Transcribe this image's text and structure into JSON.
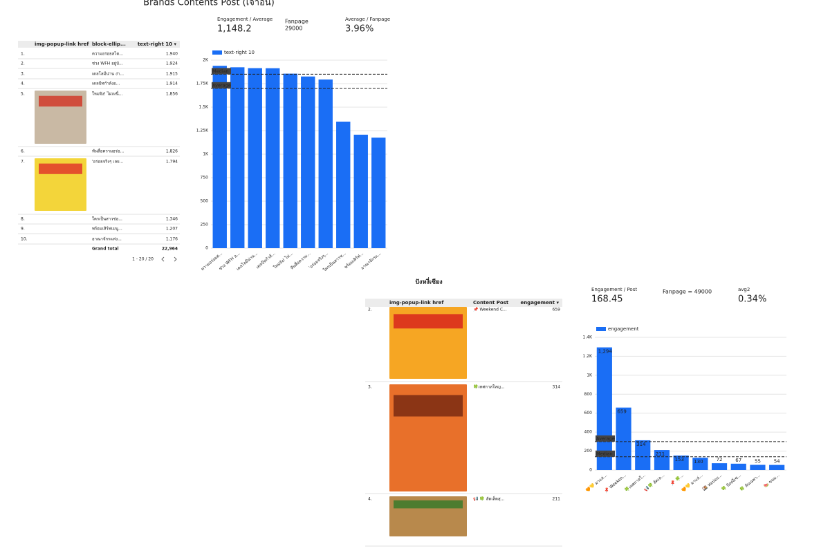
{
  "title": "Brands Contents Post (เจ้าอื่น)",
  "scorecards_top": [
    {
      "label": "Engagement / Average",
      "value": "1,148.2"
    },
    {
      "label": "Fanpage",
      "value": "29000"
    },
    {
      "label": "Average / Fanpage",
      "value": "3.96%"
    }
  ],
  "table_top": {
    "headers": [
      "img-popup-link href",
      "block-ellip...",
      "text-right 10 ▾"
    ],
    "rows": [
      [
        "1.",
        "ความอร่อยสไต...",
        "1,940"
      ],
      [
        "2.",
        "ช่วง WFH อยู่บ้...",
        "1,924"
      ],
      [
        "3.",
        "เดลโลมีน่าน ง่า...",
        "1,915"
      ],
      [
        "4.",
        "เดลบีทกำลังอ...",
        "1,914"
      ],
      [
        "5.",
        "ใหม่จัง! ไม่เหนื่...",
        "1,856"
      ],
      [
        "6.",
        "ทันสื่อความอร่อ...",
        "1,826"
      ],
      [
        "7.",
        "'อร่อยจริงๆ เลย...",
        "1,794"
      ],
      [
        "8.",
        "ใครเป็นสาวช่อ...",
        "1,346"
      ],
      [
        "9.",
        "พร้อมเสิร์ฟเมนู...",
        "1,207"
      ],
      [
        "10.",
        "อาณาจักรแห่ง...",
        "1,176"
      ]
    ],
    "total_label": "Grand total",
    "total": "22,964",
    "pagination": "1 - 20 / 20"
  },
  "chart_data": [
    {
      "type": "bar",
      "categories": [
        "ความอร่อยส...",
        "ช่วง WFH อ...",
        "เดลโลมีน่าน...",
        "เดลบีทกำลั...",
        "ใหม่จัง! ไม่...",
        "ทันสื่อความ...",
        "'อร่อยจริงๆ...",
        "ใครเป็นสาวช...",
        "พร้อมเสิร์ฟ...",
        "อาณาจักรแ..."
      ],
      "series": [
        {
          "name": "text-right 10",
          "color": "#1a6ef5",
          "values": [
            1940,
            1924,
            1915,
            1914,
            1856,
            1826,
            1794,
            1346,
            1207,
            1176
          ]
        }
      ],
      "ylim": [
        0,
        2000
      ],
      "yticks": [
        0,
        250,
        500,
        750,
        {
          "value": 1000,
          "label": "1K"
        },
        {
          "value": 1250,
          "label": "1.25K"
        },
        {
          "value": 1500,
          "label": "1.5K"
        },
        {
          "value": 1750,
          "label": "1.75K"
        },
        {
          "value": 2000,
          "label": "2K"
        }
      ],
      "reference_lines": [
        {
          "label": "Median",
          "value": 1850
        },
        {
          "label": "Average",
          "value": 1700
        }
      ],
      "grid": true
    },
    {
      "type": "bar",
      "categories": [
        "🧡💛 มาแล่...",
        "📌 Weeken...",
        "🍀เทศกาลใ...",
        "📢🍀 ลัดเล...",
        "📌 🍀...",
        "🧡💛 มาแล่...",
        "🍱 ฟอปอบ...",
        "🍀 ปังหงี่เซ...",
        "🍀 ลับเฉพา...",
        "🍉 ขนม..."
      ],
      "series": [
        {
          "name": "engagement",
          "color": "#1a6ef5",
          "values": [
            1294,
            659,
            314,
            211,
            153,
            130,
            72,
            67,
            55,
            54
          ],
          "value_labels": [
            "1,294",
            "659",
            "314",
            "211",
            "153",
            "130",
            "72",
            "67",
            "55",
            "54"
          ]
        }
      ],
      "ylim": [
        0,
        1400
      ],
      "yticks": [
        0,
        200,
        400,
        600,
        800,
        {
          "value": 1000,
          "label": "1K"
        },
        {
          "value": 1200,
          "label": "1.2K"
        },
        {
          "value": 1400,
          "label": "1.4K"
        }
      ],
      "reference_lines": [
        {
          "label": "Average",
          "value": 300
        },
        {
          "label": "Median",
          "value": 140
        }
      ],
      "grid": true
    }
  ],
  "section_title": "ปังหงี่เซียง",
  "scorecards_bottom": [
    {
      "label": "Engagement / Post",
      "value": "168.45"
    },
    {
      "label": "Fanpage = 49000"
    },
    {
      "label": "avg2",
      "value": "0.34%"
    }
  ],
  "table_bottom": {
    "headers": [
      "img-popup-link href",
      "Content Post",
      "engagement ▾"
    ],
    "rows": [
      [
        "2.",
        "📌 Weekend C...",
        "659"
      ],
      [
        "3.",
        "🍀เทศกาลใหญ...",
        "314"
      ],
      [
        "4.",
        "📢 🍀 ลัดเล็ดสุ...",
        "211"
      ]
    ]
  }
}
